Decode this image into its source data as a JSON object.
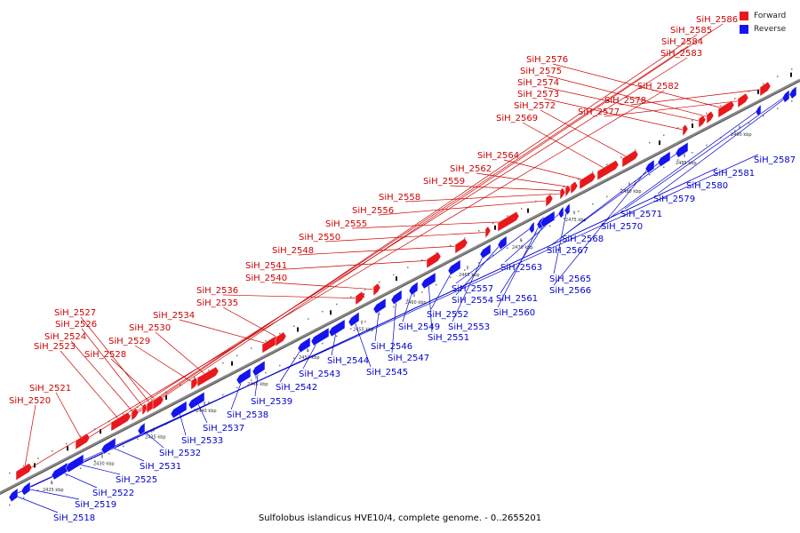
{
  "colors": {
    "forward": "#e8191d",
    "reverse": "#1414ee",
    "backbone": "#777777",
    "label_text_fwd": "#cc0000",
    "label_text_rev": "#0000cc"
  },
  "legend": [
    {
      "label": "Forward",
      "color": "#e8191d"
    },
    {
      "label": "Reverse",
      "color": "#1414ee"
    }
  ],
  "caption": "Sulfolobus islandicus HVE10/4, complete genome. - 0..2655201",
  "ticks": [
    "2425 kbp",
    "2430 kbp",
    "2435 kbp",
    "2440 kbp",
    "2445 kbp",
    "2450 kbp",
    "2455 kbp",
    "2460 kbp",
    "2465 kbp",
    "2470 kbp",
    "2475 kbp",
    "2480 kbp",
    "2485 kbp",
    "2490 kbp"
  ],
  "forward_labels": [
    "SiH_2520",
    "SiH_2521",
    "SiH_2523",
    "SiH_2524",
    "SiH_2526",
    "SiH_2527",
    "SiH_2528",
    "SiH_2529",
    "SiH_2530",
    "SiH_2534",
    "SiH_2535",
    "SiH_2536",
    "SiH_2540",
    "SiH_2541",
    "SiH_2548",
    "SiH_2550",
    "SiH_2555",
    "SiH_2556",
    "SiH_2558",
    "SiH_2559",
    "SiH_2562",
    "SiH_2564",
    "SiH_2569",
    "SiH_2572",
    "SiH_2573",
    "SiH_2574",
    "SiH_2575",
    "SiH_2576",
    "SiH_2577",
    "SiH_2578",
    "SiH_2582",
    "SiH_2583",
    "SiH_2584",
    "SiH_2585",
    "SiH_2586"
  ],
  "reverse_labels": [
    "SiH_2518",
    "SiH_2519",
    "SiH_2522",
    "SiH_2525",
    "SiH_2531",
    "SiH_2532",
    "SiH_2533",
    "SiH_2537",
    "SiH_2538",
    "SiH_2539",
    "SiH_2542",
    "SiH_2543",
    "SiH_2544",
    "SiH_2545",
    "SiH_2546",
    "SiH_2547",
    "SiH_2549",
    "SiH_2551",
    "SiH_2552",
    "SiH_2553",
    "SiH_2554",
    "SiH_2557",
    "SiH_2560",
    "SiH_2561",
    "SiH_2563",
    "SiH_2565",
    "SiH_2566",
    "SiH_2567",
    "SiH_2568",
    "SiH_2570",
    "SiH_2571",
    "SiH_2579",
    "SiH_2580",
    "SiH_2581",
    "SiH_2587"
  ]
}
